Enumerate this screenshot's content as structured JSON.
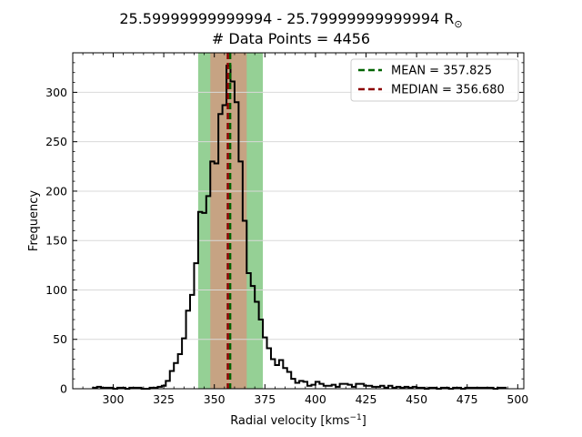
{
  "chart_data": {
    "type": "histogram",
    "title_line1": "25.59999999999994 - 25.79999999999994 R",
    "title_symbol": "⊙",
    "title_line2": "# Data Points = 4456",
    "xlabel": "Radial velocity [kms",
    "xlabel_sup": "−1",
    "xlabel_end": "]",
    "ylabel": "Frequency",
    "xlim": [
      280,
      503
    ],
    "ylim": [
      0,
      340
    ],
    "xticks": [
      300,
      325,
      350,
      375,
      400,
      425,
      450,
      475,
      500
    ],
    "yticks": [
      0,
      50,
      100,
      150,
      200,
      250,
      300
    ],
    "grid": "horizontal",
    "bin_start": 290,
    "bin_width": 2,
    "counts": [
      1,
      2,
      1,
      1,
      1,
      0,
      1,
      1,
      0,
      1,
      1,
      1,
      0,
      0,
      1,
      1,
      2,
      3,
      8,
      18,
      26,
      35,
      51,
      79,
      95,
      127,
      179,
      178,
      195,
      230,
      228,
      278,
      287,
      327,
      311,
      290,
      230,
      170,
      117,
      104,
      88,
      70,
      52,
      41,
      30,
      24,
      29,
      21,
      17,
      10,
      6,
      8,
      7,
      3,
      4,
      7,
      5,
      3,
      3,
      4,
      2,
      5,
      5,
      4,
      2,
      5,
      5,
      3,
      3,
      2,
      2,
      3,
      1,
      3,
      1,
      2,
      1,
      2,
      1,
      2,
      1,
      1,
      0,
      1,
      1,
      0,
      1,
      1,
      0,
      1,
      1,
      0,
      1,
      1,
      1,
      1,
      1,
      1,
      1,
      0,
      1,
      1
    ],
    "mean": 357.825,
    "median": 356.68,
    "band_outer": [
      342,
      374
    ],
    "band_inner": [
      348,
      366
    ],
    "legend": [
      {
        "label": "MEAN = 357.825",
        "color": "#006400"
      },
      {
        "label": "MEDIAN = 356.680",
        "color": "#8b0000"
      }
    ],
    "legend_position": "top-right",
    "colors": {
      "hist": "#000000",
      "band_outer": "#95d095",
      "band_inner": "#c6a383",
      "grid": "#d9d9d9",
      "mean": "#006400",
      "median": "#8b0000"
    }
  }
}
